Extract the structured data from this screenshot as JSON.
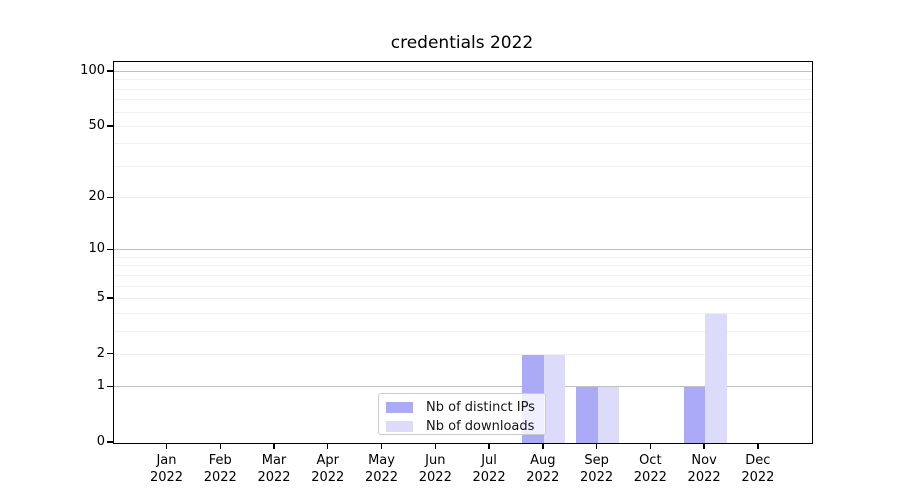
{
  "chart_data": {
    "type": "bar",
    "title": "credentials 2022",
    "categories": [
      "Jan",
      "Feb",
      "Mar",
      "Apr",
      "May",
      "Jun",
      "Jul",
      "Aug",
      "Sep",
      "Oct",
      "Nov",
      "Dec"
    ],
    "category_year": "2022",
    "series": [
      {
        "name": "Nb of distinct IPs",
        "color": "#aaaaf7",
        "values": [
          0,
          0,
          0,
          0,
          0,
          0,
          0,
          2,
          1,
          0,
          1,
          0
        ]
      },
      {
        "name": "Nb of downloads",
        "color": "#dcdcfa",
        "values": [
          0,
          0,
          0,
          0,
          0,
          0,
          0,
          2,
          1,
          0,
          4,
          0
        ]
      }
    ],
    "xlabel": "",
    "ylabel": "",
    "yscale": "log1p",
    "ylim": [
      0,
      100
    ],
    "yticks": [
      0,
      1,
      2,
      5,
      10,
      20,
      50,
      100
    ],
    "major_gridlines": [
      1,
      10,
      100
    ],
    "minor_gridlines": [
      2,
      3,
      4,
      5,
      6,
      7,
      8,
      9,
      20,
      30,
      40,
      50,
      60,
      70,
      80,
      90
    ],
    "grid": true,
    "legend": {
      "position": "lower center"
    },
    "colors": {
      "axis_frame": "#000000",
      "major_grid": "#c0c0c0",
      "minor_grid": "#efefef"
    }
  }
}
